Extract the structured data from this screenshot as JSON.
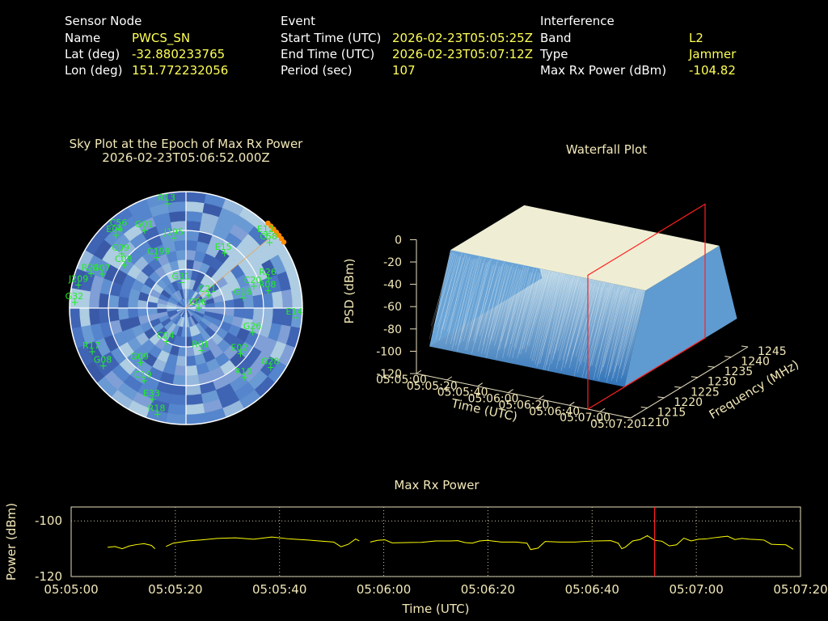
{
  "info": {
    "sensor": {
      "heading": "Sensor Node",
      "rows": [
        {
          "label": "Name",
          "value": "PWCS_SN"
        },
        {
          "label": "Lat (deg)",
          "value": "-32.880233765"
        },
        {
          "label": "Lon (deg)",
          "value": "151.772232056"
        }
      ]
    },
    "event": {
      "heading": "Event",
      "rows": [
        {
          "label": "Start Time (UTC)",
          "value": "2026-02-23T05:05:25Z"
        },
        {
          "label": "End Time (UTC)",
          "value": "2026-02-23T05:07:12Z"
        },
        {
          "label": "Period (sec)",
          "value": "107"
        }
      ]
    },
    "interference": {
      "heading": "Interference",
      "rows": [
        {
          "label": "Band",
          "value": "L2"
        },
        {
          "label": "Type",
          "value": "Jammer"
        },
        {
          "label": "Max Rx Power (dBm)",
          "value": "-104.82"
        }
      ]
    }
  },
  "colors": {
    "header": "#ffffff",
    "value": "#ffff55",
    "title": "#f2e8b8",
    "sat_green": "#22ee22",
    "power_line": "#ffff00",
    "marker_red": "#ff2020",
    "sky_base": "#4a76c4",
    "jammer": "#ff8c00"
  },
  "chart_data": [
    {
      "type": "scatter",
      "kind": "sky-plot",
      "title": "Sky Plot at the Epoch of Max Rx Power",
      "subtitle": "2026-02-23T05:06:52.000Z",
      "satellites": [
        {
          "id": "R13",
          "az": -10,
          "el": 8
        },
        {
          "id": "G01",
          "az": -28,
          "el": 22
        },
        {
          "id": "C56",
          "az": -40,
          "el": 10
        },
        {
          "id": "E04",
          "az": -44,
          "el": 12
        },
        {
          "id": "C09",
          "az": -50,
          "el": 25
        },
        {
          "id": "J195",
          "az": -10,
          "el": 35
        },
        {
          "id": "E15",
          "az": 35,
          "el": 38
        },
        {
          "id": "E12",
          "az": 48,
          "el": 6
        },
        {
          "id": "C58",
          "az": 52,
          "el": 8
        },
        {
          "id": "R24",
          "az": -70,
          "el": 12
        },
        {
          "id": "G07",
          "az": -68,
          "el": 20
        },
        {
          "id": "C08",
          "az": -55,
          "el": 32
        },
        {
          "id": "C199",
          "az": -30,
          "el": 45
        },
        {
          "id": "R26",
          "az": 70,
          "el": 22
        },
        {
          "id": "J209",
          "az": -78,
          "el": 5
        },
        {
          "id": "G32",
          "az": -87,
          "el": 4
        },
        {
          "id": "C20",
          "az": 72,
          "el": 35
        },
        {
          "id": "R08",
          "az": 78,
          "el": 25
        },
        {
          "id": "E14",
          "az": 95,
          "el": 5
        },
        {
          "id": "G16",
          "az": 80,
          "el": 45
        },
        {
          "id": "G31",
          "az": -10,
          "el": 70
        },
        {
          "id": "C21",
          "az": 60,
          "el": 70
        },
        {
          "id": "R17",
          "az": -115,
          "el": 10
        },
        {
          "id": "G08",
          "az": -125,
          "el": 12
        },
        {
          "id": "G09",
          "az": -140,
          "el": 35
        },
        {
          "id": "C19",
          "az": -150,
          "el": 25
        },
        {
          "id": "E33",
          "az": -160,
          "el": 15
        },
        {
          "id": "R18",
          "az": -165,
          "el": 5
        },
        {
          "id": "G28",
          "az": 125,
          "el": 10
        },
        {
          "id": "R10",
          "az": 140,
          "el": 20
        },
        {
          "id": "E02",
          "az": 130,
          "el": 35
        },
        {
          "id": "G26",
          "az": 110,
          "el": 35
        },
        {
          "id": "R01",
          "az": 160,
          "el": 55
        },
        {
          "id": "C04",
          "az": -150,
          "el": 60
        },
        {
          "id": "C06",
          "az": 90,
          "el": 80
        }
      ],
      "jammer_direction_az": 50
    },
    {
      "type": "area",
      "kind": "waterfall-3d",
      "title": "Waterfall Plot",
      "xlabel": "Time (UTC)",
      "ylabel": "Frequency (MHz)",
      "zlabel": "PSD (dBm)",
      "x_ticks": [
        "05:05:00",
        "05:05:20",
        "05:05:40",
        "05:06:00",
        "05:06:20",
        "05:06:40",
        "05:07:00",
        "05:07:20"
      ],
      "y_ticks": [
        1210,
        1215,
        1220,
        1225,
        1230,
        1235,
        1240,
        1245
      ],
      "z_ticks": [
        0,
        -20,
        -40,
        -60,
        -80,
        -100,
        -120
      ],
      "zlim": [
        -120,
        0
      ],
      "plateau_psd_dbm": -20,
      "floor_psd_dbm": -95,
      "jam_band_mhz": [
        1217,
        1239
      ],
      "marker_time": "05:06:52"
    },
    {
      "type": "line",
      "kind": "max-rx-power",
      "title": "Max Rx Power",
      "xlabel": "Time (UTC)",
      "ylabel": "Power (dBm)",
      "ylim": [
        -120,
        -95
      ],
      "y_ticks": [
        -100,
        -120
      ],
      "x_ticks": [
        "05:05:00",
        "05:05:20",
        "05:05:40",
        "05:06:00",
        "05:06:20",
        "05:06:40",
        "05:07:00",
        "05:07:20"
      ],
      "marker_x_sec": 112,
      "segments": [
        [
          [
            10,
            -109.5
          ],
          [
            12,
            -109.2
          ],
          [
            14,
            -110
          ],
          [
            16,
            -109
          ],
          [
            18,
            -108.5
          ],
          [
            20,
            -108.2
          ],
          [
            22,
            -108.8
          ],
          [
            23,
            -110
          ]
        ],
        [
          [
            26,
            -109.2
          ],
          [
            28,
            -108
          ],
          [
            32,
            -107.2
          ],
          [
            36,
            -106.8
          ],
          [
            40,
            -106.3
          ],
          [
            45,
            -106.1
          ],
          [
            50,
            -106.6
          ],
          [
            55,
            -105.8
          ],
          [
            60,
            -106.5
          ],
          [
            65,
            -106.9
          ],
          [
            68,
            -107.2
          ],
          [
            72,
            -107.6
          ],
          [
            74,
            -109.3
          ],
          [
            76,
            -108.4
          ],
          [
            78,
            -106.5
          ],
          [
            79,
            -107.2
          ]
        ],
        [
          [
            82,
            -107.6
          ],
          [
            84,
            -107
          ],
          [
            86,
            -106.8
          ],
          [
            88,
            -107.9
          ],
          [
            92,
            -107.8
          ],
          [
            96,
            -107.7
          ],
          [
            100,
            -107.2
          ],
          [
            104,
            -107.2
          ],
          [
            106,
            -107.1
          ],
          [
            108,
            -107.8
          ],
          [
            110,
            -108
          ],
          [
            112,
            -107.2
          ],
          [
            114,
            -107
          ],
          [
            118,
            -107.6
          ],
          [
            122,
            -107.6
          ],
          [
            125,
            -108
          ],
          [
            126,
            -110.3
          ],
          [
            128,
            -109.8
          ],
          [
            130,
            -107.4
          ],
          [
            134,
            -107.6
          ],
          [
            138,
            -107.6
          ],
          [
            142,
            -107.3
          ],
          [
            144,
            -107.2
          ],
          [
            148,
            -107.1
          ],
          [
            150,
            -108
          ],
          [
            151,
            -110
          ],
          [
            152,
            -109.4
          ],
          [
            154,
            -107.2
          ],
          [
            156,
            -106.7
          ],
          [
            158,
            -105.3
          ],
          [
            160,
            -107
          ],
          [
            162,
            -107.3
          ],
          [
            164,
            -109
          ],
          [
            166,
            -108.6
          ],
          [
            168,
            -106.2
          ],
          [
            170,
            -107.2
          ],
          [
            172,
            -106.6
          ],
          [
            174,
            -106.5
          ],
          [
            176,
            -106.1
          ],
          [
            178,
            -105.8
          ],
          [
            180,
            -105.5
          ],
          [
            182,
            -106.7
          ],
          [
            184,
            -106.3
          ],
          [
            186,
            -106.6
          ],
          [
            188,
            -106.7
          ],
          [
            190,
            -106.9
          ],
          [
            192,
            -108.4
          ],
          [
            194,
            -108.5
          ],
          [
            196,
            -108.6
          ],
          [
            198,
            -110.2
          ]
        ]
      ],
      "xlim_sec": [
        0,
        140
      ]
    }
  ]
}
